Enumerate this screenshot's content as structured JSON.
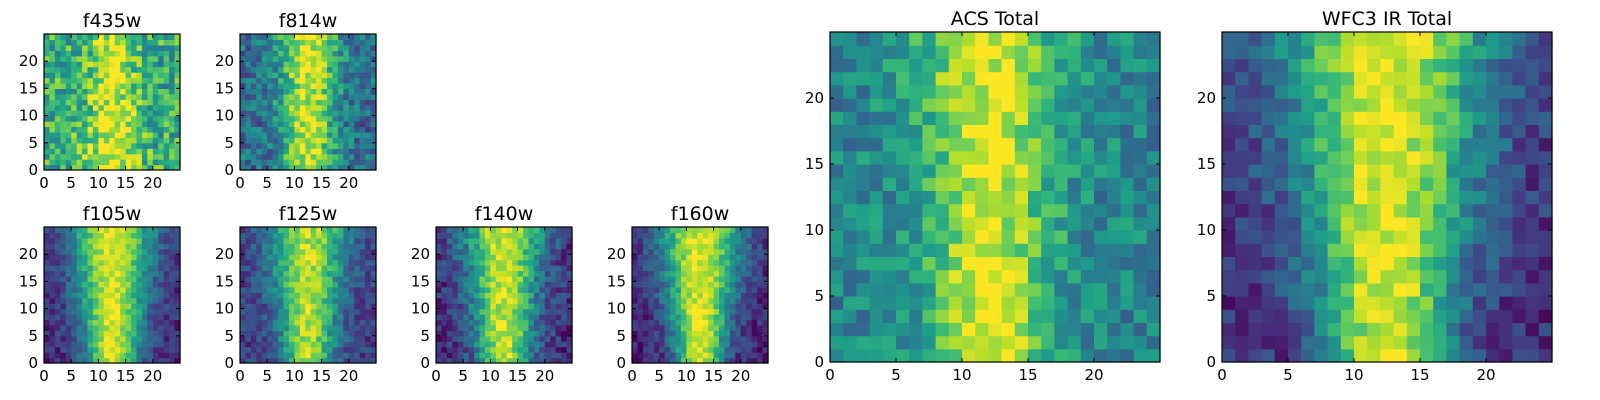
{
  "chart_data": [
    {
      "type": "heatmap",
      "title": "f435w",
      "xlim": [
        0,
        25
      ],
      "ylim": [
        0,
        25
      ],
      "xticks": [
        0,
        5,
        10,
        15,
        20
      ],
      "yticks": [
        0,
        5,
        10,
        15,
        20
      ],
      "colormap": "viridis",
      "pattern": {
        "background": 0.62,
        "noise": 0.3,
        "peak": 0.34,
        "center_x": 12.5,
        "width": 3.2,
        "y_trend": -0.15
      }
    },
    {
      "type": "heatmap",
      "title": "f814w",
      "xlim": [
        0,
        25
      ],
      "ylim": [
        0,
        25
      ],
      "xticks": [
        0,
        5,
        10,
        15,
        20
      ],
      "yticks": [
        0,
        5,
        10,
        15,
        20
      ],
      "colormap": "viridis",
      "pattern": {
        "background": 0.35,
        "noise": 0.24,
        "peak": 0.58,
        "center_x": 12.5,
        "width": 3.6,
        "y_trend": 0.1
      }
    },
    {
      "type": "heatmap",
      "title": "f105w",
      "xlim": [
        0,
        25
      ],
      "ylim": [
        0,
        25
      ],
      "xticks": [
        0,
        5,
        10,
        15,
        20
      ],
      "yticks": [
        0,
        5,
        10,
        15,
        20
      ],
      "colormap": "viridis",
      "pattern": {
        "background": 0.12,
        "noise": 0.14,
        "peak": 0.82,
        "center_x": 12.5,
        "width": 4.5,
        "y_trend": 0.25
      }
    },
    {
      "type": "heatmap",
      "title": "f125w",
      "xlim": [
        0,
        25
      ],
      "ylim": [
        0,
        25
      ],
      "xticks": [
        0,
        5,
        10,
        15,
        20
      ],
      "yticks": [
        0,
        5,
        10,
        15,
        20
      ],
      "colormap": "viridis",
      "pattern": {
        "background": 0.18,
        "noise": 0.16,
        "peak": 0.7,
        "center_x": 12.5,
        "width": 4.2,
        "y_trend": 0.25
      }
    },
    {
      "type": "heatmap",
      "title": "f140w",
      "xlim": [
        0,
        25
      ],
      "ylim": [
        0,
        25
      ],
      "xticks": [
        0,
        5,
        10,
        15,
        20
      ],
      "yticks": [
        0,
        5,
        10,
        15,
        20
      ],
      "colormap": "viridis",
      "pattern": {
        "background": 0.12,
        "noise": 0.18,
        "peak": 0.8,
        "center_x": 12.5,
        "width": 4.4,
        "y_trend": 0.25
      }
    },
    {
      "type": "heatmap",
      "title": "f160w",
      "xlim": [
        0,
        25
      ],
      "ylim": [
        0,
        25
      ],
      "xticks": [
        0,
        5,
        10,
        15,
        20
      ],
      "yticks": [
        0,
        5,
        10,
        15,
        20
      ],
      "colormap": "viridis",
      "pattern": {
        "background": 0.1,
        "noise": 0.15,
        "peak": 0.85,
        "center_x": 12.5,
        "width": 4.4,
        "y_trend": 0.3
      }
    },
    {
      "type": "heatmap",
      "title": "ACS Total",
      "xlim": [
        0,
        25
      ],
      "ylim": [
        0,
        25
      ],
      "xticks": [
        0,
        5,
        10,
        15,
        20
      ],
      "yticks": [
        0,
        5,
        10,
        15,
        20
      ],
      "colormap": "viridis",
      "pattern": {
        "background": 0.45,
        "noise": 0.2,
        "peak": 0.5,
        "center_x": 12.0,
        "width": 3.4,
        "y_trend": 0.1
      }
    },
    {
      "type": "heatmap",
      "title": "WFC3 IR Total",
      "xlim": [
        0,
        25
      ],
      "ylim": [
        0,
        25
      ],
      "xticks": [
        0,
        5,
        10,
        15,
        20
      ],
      "yticks": [
        0,
        5,
        10,
        15,
        20
      ],
      "colormap": "viridis",
      "pattern": {
        "background": 0.14,
        "noise": 0.16,
        "peak": 0.82,
        "center_x": 12.5,
        "width": 4.5,
        "y_trend": 0.28
      }
    }
  ]
}
